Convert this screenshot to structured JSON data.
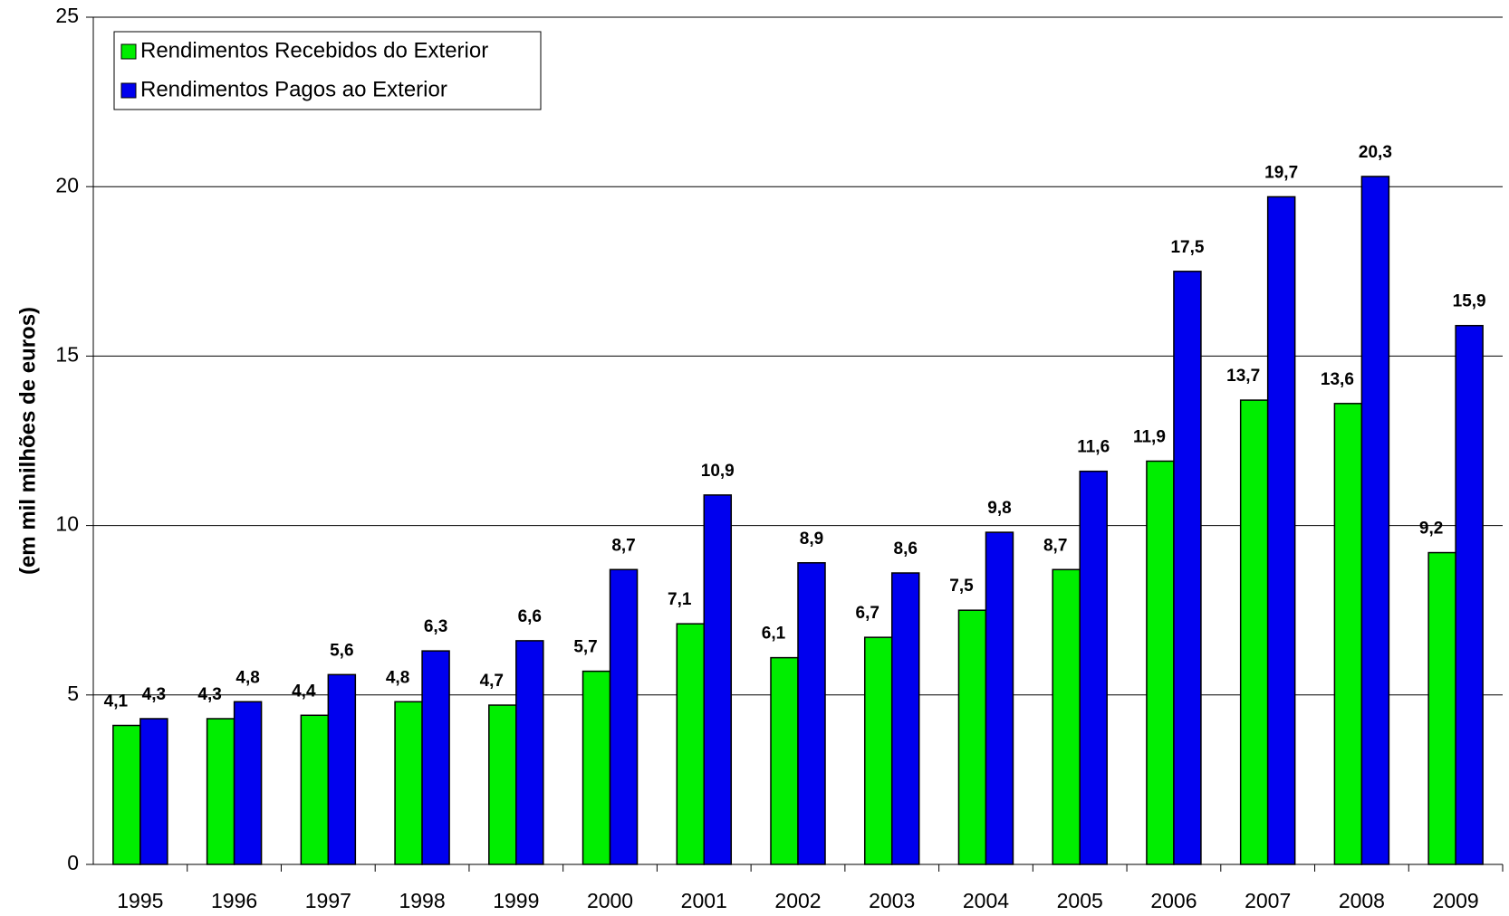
{
  "chart_data": {
    "type": "bar",
    "y_label": "(em mil milhões de euros)",
    "categories": [
      "1995",
      "1996",
      "1997",
      "1998",
      "1999",
      "2000",
      "2001",
      "2002",
      "2003",
      "2004",
      "2005",
      "2006",
      "2007",
      "2008",
      "2009"
    ],
    "series": [
      {
        "name": "Rendimentos Recebidos do Exterior",
        "color": "#00ee00",
        "values": [
          4.1,
          4.3,
          4.4,
          4.8,
          4.7,
          5.7,
          7.1,
          6.1,
          6.7,
          7.5,
          8.7,
          11.9,
          13.7,
          13.6,
          9.2
        ],
        "value_labels": [
          "4,1",
          "4,3",
          "4,4",
          "4,8",
          "4,7",
          "5,7",
          "7,1",
          "6,1",
          "6,7",
          "7,5",
          "8,7",
          "11,9",
          "13,7",
          "13,6",
          "9,2"
        ]
      },
      {
        "name": "Rendimentos Pagos ao Exterior",
        "color": "#0000ee",
        "values": [
          4.3,
          4.8,
          5.6,
          6.3,
          6.6,
          8.7,
          10.9,
          8.9,
          8.6,
          9.8,
          11.6,
          17.5,
          19.7,
          20.3,
          15.9
        ],
        "value_labels": [
          "4,3",
          "4,8",
          "5,6",
          "6,3",
          "6,6",
          "8,7",
          "10,9",
          "8,9",
          "8,6",
          "9,8",
          "11,6",
          "17,5",
          "19,7",
          "20,3",
          "15,9"
        ]
      }
    ],
    "ylim": [
      0,
      25
    ],
    "yticks": [
      0,
      5,
      10,
      15,
      20,
      25
    ],
    "grid": true,
    "legend": "top-left"
  }
}
